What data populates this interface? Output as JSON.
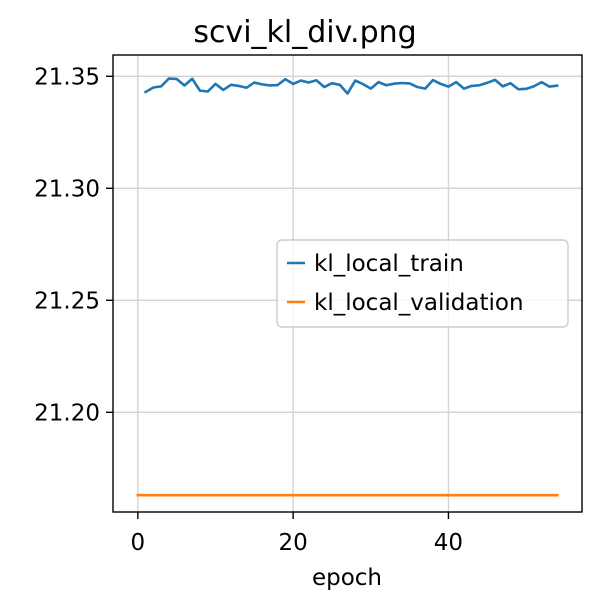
{
  "chart_data": {
    "type": "line",
    "title": "scvi_kl_div.png",
    "xlabel": "epoch",
    "ylabel": "",
    "xlim": [
      -3.2,
      57.2
    ],
    "ylim": [
      21.1555,
      21.3595
    ],
    "xticks": [
      0,
      20,
      40
    ],
    "xtick_labels": [
      "0",
      "20",
      "40"
    ],
    "yticks": [
      21.2,
      21.25,
      21.3,
      21.35
    ],
    "ytick_labels": [
      "21.20",
      "21.25",
      "21.30",
      "21.35"
    ],
    "grid": true,
    "legend_position": "center-right",
    "series": [
      {
        "name": "kl_local_train",
        "color": "#1f77b4",
        "x": [
          1,
          2,
          3,
          4,
          5,
          6,
          7,
          8,
          9,
          10,
          11,
          12,
          13,
          14,
          15,
          16,
          17,
          18,
          19,
          20,
          21,
          22,
          23,
          24,
          25,
          26,
          27,
          28,
          29,
          30,
          31,
          32,
          33,
          34,
          35,
          36,
          37,
          38,
          39,
          40,
          41,
          42,
          43,
          44,
          45,
          46,
          47,
          48,
          49,
          50,
          51,
          52,
          53,
          54
        ],
        "values": [
          21.343,
          21.345,
          21.3455,
          21.349,
          21.3488,
          21.3459,
          21.3489,
          21.3436,
          21.3432,
          21.3466,
          21.3439,
          21.3462,
          21.3457,
          21.3449,
          21.3472,
          21.3464,
          21.3459,
          21.3461,
          21.3487,
          21.3466,
          21.3481,
          21.3472,
          21.3482,
          21.3452,
          21.3469,
          21.3462,
          21.3423,
          21.3481,
          21.3465,
          21.3445,
          21.3474,
          21.346,
          21.3467,
          21.347,
          21.3468,
          21.3452,
          21.3445,
          21.3483,
          21.3466,
          21.3454,
          21.3474,
          21.3445,
          21.3457,
          21.346,
          21.3471,
          21.3484,
          21.3455,
          21.3469,
          21.3442,
          21.3444,
          21.3455,
          21.3474,
          21.3454,
          21.3458
        ]
      },
      {
        "name": "kl_local_validation",
        "color": "#ff7f0e",
        "x": [
          0,
          54
        ],
        "values": [
          21.163,
          21.163
        ]
      }
    ]
  }
}
